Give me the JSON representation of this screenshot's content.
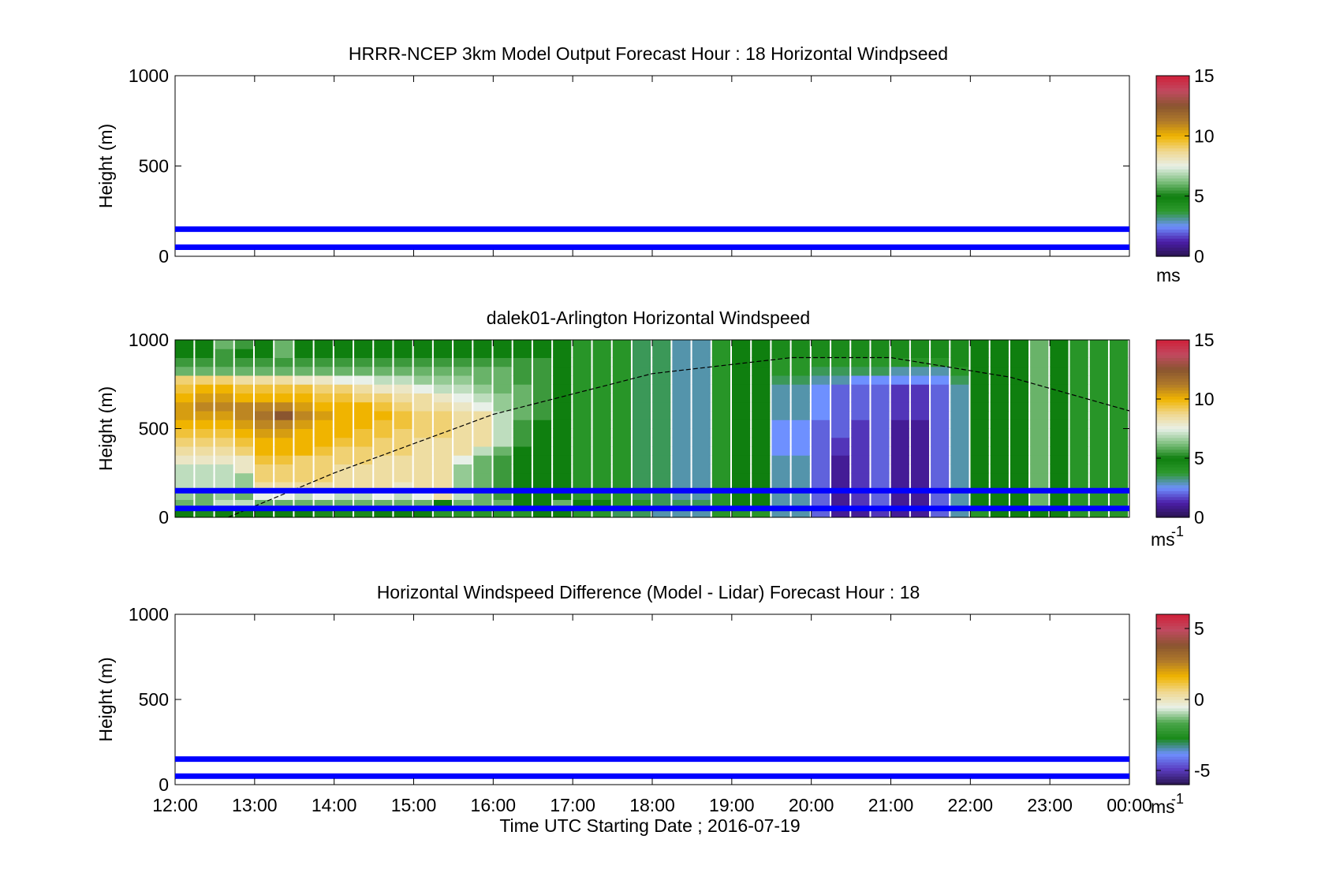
{
  "figure": {
    "xlabel": "Time UTC  Starting Date ; 2016-07-19",
    "xticks": [
      "12:00",
      "13:00",
      "14:00",
      "15:00",
      "16:00",
      "17:00",
      "18:00",
      "19:00",
      "20:00",
      "21:00",
      "22:00",
      "23:00",
      "00:00"
    ]
  },
  "colors": {
    "ref_line": "#0000ff",
    "axes": "#000000",
    "windspeed_colormap": [
      "#2a1450",
      "#4b1ea8",
      "#6e90ff",
      "#2e9a2e",
      "#0f7f0f",
      "#7fc07f",
      "#e8f0e8",
      "#f0d890",
      "#f0b400",
      "#b07a2a",
      "#8a5530",
      "#c04a60",
      "#d0203a"
    ],
    "difference_colormap": [
      "#2a1450",
      "#5a3cc0",
      "#6e90ff",
      "#1a8a1a",
      "#4aa64a",
      "#e8f0e8",
      "#f0d890",
      "#f0b400",
      "#b07a2a",
      "#8a5530",
      "#c04a60",
      "#d0203a"
    ]
  },
  "chart_data": [
    {
      "type": "heatmap",
      "title": "HRRR-NCEP 3km Model Output   Forecast Hour : 18 Horizontal Windpseed",
      "ylabel": "Height (m)",
      "ylim": [
        0,
        1000
      ],
      "yticks": [
        "0",
        "500",
        "1000"
      ],
      "xlim": [
        "12:00",
        "00:00"
      ],
      "grid": false,
      "reference_lines_m": [
        50,
        150
      ],
      "colorbar": {
        "min": 0,
        "max": 15,
        "ticks": [
          "0",
          "5",
          "10",
          "15"
        ],
        "unit_label": "ms"
      },
      "data_present": false
    },
    {
      "type": "heatmap",
      "title": "dalek01-Arlington  Horizontal Windspeed",
      "ylabel": "Height (m)",
      "ylim": [
        0,
        1000
      ],
      "yticks": [
        "0",
        "500",
        "1000"
      ],
      "xlim": [
        "12:00",
        "00:00"
      ],
      "grid": false,
      "reference_lines_m": [
        50,
        150
      ],
      "colorbar": {
        "min": 0,
        "max": 15,
        "ticks": [
          "0",
          "5",
          "10",
          "15"
        ],
        "unit_label": "ms",
        "unit_exponent": "-1"
      },
      "time_bins": [
        "12:07",
        "12:22",
        "12:37",
        "12:52",
        "13:07",
        "13:22",
        "13:37",
        "13:52",
        "14:07",
        "14:22",
        "14:37",
        "14:52",
        "15:07",
        "15:22",
        "15:37",
        "15:52",
        "16:07",
        "16:22",
        "16:37",
        "16:52",
        "17:07",
        "17:22",
        "17:37",
        "17:52",
        "18:07",
        "18:22",
        "18:37",
        "18:52",
        "19:07",
        "19:22",
        "19:37",
        "19:52",
        "20:07",
        "20:22",
        "20:37",
        "20:52",
        "21:07",
        "21:22",
        "21:37",
        "21:52",
        "22:07",
        "22:22",
        "22:37",
        "22:52",
        "23:07",
        "23:22",
        "23:37",
        "23:52"
      ],
      "heights_m": [
        25,
        75,
        125,
        175,
        225,
        275,
        325,
        375,
        425,
        475,
        525,
        575,
        625,
        675,
        725,
        775,
        825,
        875,
        925,
        975
      ],
      "windspeed_ms": [
        [
          5,
          4.5,
          5,
          5,
          5,
          5,
          5,
          4.5,
          4.5,
          4.5,
          5,
          5,
          5,
          4,
          4,
          4,
          4,
          4,
          5,
          5,
          4,
          4,
          3.5,
          3.5,
          3,
          3,
          3,
          4,
          4,
          4,
          3,
          3,
          2,
          1,
          1,
          1.5,
          1,
          1,
          2,
          3,
          4,
          5,
          5,
          5,
          5,
          4,
          4,
          4
        ],
        [
          6,
          6,
          7,
          7,
          6,
          6,
          6,
          6,
          6,
          6,
          6,
          6,
          6,
          5,
          6,
          6,
          6,
          5,
          5,
          6,
          5,
          5,
          4,
          4,
          3.5,
          3.5,
          3.5,
          4,
          5,
          5,
          3,
          3,
          2,
          1,
          1.5,
          2,
          1,
          1,
          2,
          3,
          5,
          5,
          5,
          6,
          5,
          4,
          4,
          4
        ],
        [
          6.5,
          6,
          6.5,
          6,
          7.5,
          7.5,
          7,
          7.5,
          7,
          7,
          7.5,
          7,
          7.5,
          8.5,
          7,
          6,
          5.5,
          5,
          5,
          5,
          4,
          4,
          4,
          3.5,
          3.5,
          3,
          3,
          4,
          5,
          5,
          3,
          3,
          2,
          1,
          1.5,
          2,
          1,
          1,
          2,
          3,
          5,
          5,
          5,
          6,
          5,
          4,
          4,
          4
        ],
        [
          7,
          7,
          7,
          6.5,
          8.5,
          8.5,
          8.5,
          8.5,
          8.5,
          8.5,
          8.5,
          8,
          8.5,
          8.5,
          6.5,
          6,
          5.5,
          5,
          5,
          5,
          4,
          4,
          4,
          3.5,
          3.5,
          3,
          3,
          4,
          5,
          5,
          3,
          3,
          2,
          1,
          1.5,
          2,
          1,
          1,
          2,
          3,
          5,
          5,
          5,
          6,
          5,
          4,
          4,
          4
        ],
        [
          7,
          7,
          7,
          6.5,
          9,
          9,
          9,
          9,
          8.5,
          8.5,
          8.5,
          8.5,
          8.5,
          8.5,
          6.5,
          6,
          5.5,
          5,
          5,
          5,
          4,
          4,
          4,
          3.5,
          3.5,
          3,
          3,
          4,
          5,
          5,
          3,
          3,
          2,
          1,
          1.5,
          2,
          1,
          1,
          2,
          3,
          5,
          5,
          5,
          6,
          5,
          4,
          4,
          4
        ],
        [
          7,
          7,
          7,
          8,
          9,
          9,
          9,
          9,
          8.5,
          8.5,
          8.5,
          8.5,
          8.5,
          8.5,
          6.5,
          6,
          5.5,
          5,
          5,
          5,
          4,
          4,
          4,
          3.5,
          3.5,
          3,
          3,
          4,
          5,
          5,
          3,
          3,
          2,
          1,
          1.5,
          2,
          1,
          1,
          2,
          3,
          5,
          5,
          5,
          6,
          5,
          4,
          4,
          4
        ],
        [
          8,
          8,
          8,
          8,
          9.5,
          9.5,
          9,
          9,
          9,
          9,
          8.5,
          8.5,
          8.5,
          8.5,
          7.5,
          6,
          5.5,
          5,
          5,
          5,
          4,
          4,
          4,
          3.5,
          3.5,
          3,
          3,
          4,
          5,
          5,
          3,
          3,
          2,
          1,
          1.5,
          2,
          1,
          1,
          2,
          3,
          5,
          5,
          5,
          6,
          5,
          4,
          4,
          4
        ],
        [
          8.5,
          8.5,
          8.5,
          9,
          10,
          10,
          10,
          9.5,
          9,
          9,
          9,
          9,
          8.5,
          8.5,
          8.5,
          7,
          6,
          5,
          5,
          5,
          4,
          4,
          4,
          3.5,
          3.5,
          3,
          3,
          4,
          5,
          5,
          2.5,
          2.5,
          2,
          1.5,
          1.5,
          2,
          1,
          1,
          2,
          3,
          5,
          5,
          5,
          6,
          5,
          4,
          4,
          4
        ],
        [
          9,
          9,
          9,
          9.5,
          10,
          10,
          10,
          10,
          9.5,
          9.5,
          9,
          9,
          8.5,
          8.5,
          8.5,
          8.5,
          7,
          5.5,
          5,
          5,
          4,
          4,
          4,
          3.5,
          3.5,
          3,
          3,
          4,
          5,
          5,
          2.5,
          2.5,
          2,
          1.5,
          1.5,
          2,
          1,
          1,
          2,
          3,
          5,
          5,
          5,
          6,
          5,
          4,
          4,
          4
        ],
        [
          9.5,
          9.5,
          9.5,
          10,
          10.5,
          10.5,
          10,
          10,
          10,
          9.5,
          9.5,
          9,
          9,
          9,
          8.5,
          8.5,
          7,
          5.5,
          5,
          5,
          4,
          4,
          4,
          3.5,
          3.5,
          3,
          3,
          4,
          5,
          5,
          2.5,
          2.5,
          2,
          2,
          1.5,
          2,
          1,
          1,
          2,
          3,
          5,
          5,
          5,
          6,
          5,
          4,
          4,
          4
        ],
        [
          10,
          10,
          10,
          10.5,
          11,
          11,
          10.5,
          10,
          10,
          10,
          9.5,
          9.5,
          9,
          9,
          8.5,
          8.5,
          7,
          5.5,
          5,
          5,
          4,
          4,
          4,
          3.5,
          3.5,
          3,
          3,
          4,
          5,
          5,
          2.5,
          2.5,
          2,
          2,
          1.5,
          2,
          1,
          1,
          2,
          3,
          5,
          5,
          5,
          6,
          5,
          4,
          4,
          4
        ],
        [
          10.5,
          10.5,
          10.5,
          11,
          11.5,
          12.5,
          11,
          10.5,
          10,
          10,
          10,
          9.5,
          9,
          9,
          8.5,
          8.5,
          7,
          6,
          5.5,
          5,
          4,
          4,
          4,
          3.5,
          3.5,
          3,
          3,
          4,
          5,
          5,
          3,
          3,
          2.5,
          2,
          2,
          2,
          1.5,
          1.5,
          2,
          3,
          5,
          5,
          5,
          6,
          5,
          4,
          4,
          4
        ],
        [
          10.5,
          11,
          11,
          11,
          11,
          11,
          10.5,
          10,
          10,
          10,
          9.5,
          9,
          8.5,
          8.5,
          8,
          7.5,
          6.5,
          6,
          5.5,
          5,
          4,
          4,
          4,
          3.5,
          3.5,
          3,
          3,
          4,
          5,
          5,
          3,
          3,
          2.5,
          2,
          2,
          2,
          1.5,
          1.5,
          2,
          3,
          5,
          5,
          5,
          6,
          5,
          4,
          4,
          4
        ],
        [
          10,
          10.5,
          10.5,
          10,
          10,
          10,
          10,
          9.5,
          9.5,
          9,
          9,
          8.5,
          8.5,
          8,
          7.5,
          7,
          6.5,
          6,
          5.5,
          5,
          4,
          4,
          4,
          3.5,
          3.5,
          3,
          3,
          4,
          5,
          5,
          3,
          3,
          2.5,
          2,
          2,
          2,
          1.5,
          1.5,
          2,
          3,
          5,
          5,
          5,
          6,
          5,
          4,
          4,
          4
        ],
        [
          9.5,
          10,
          10,
          9.5,
          9.5,
          9.5,
          9.5,
          9,
          9,
          8.5,
          8,
          8,
          7.5,
          7,
          7,
          6.5,
          6,
          6,
          5.5,
          5,
          4,
          4,
          4,
          3.5,
          3.5,
          3,
          3,
          4,
          5,
          5,
          3,
          3,
          2.5,
          2,
          2,
          2,
          1.5,
          1.5,
          2,
          3,
          5,
          5,
          5,
          6,
          5,
          4,
          4,
          4
        ],
        [
          9,
          9,
          9,
          8.5,
          8.5,
          8.5,
          8,
          8,
          7.5,
          7.5,
          7,
          7,
          6.5,
          6.5,
          6.5,
          6,
          6,
          5.5,
          5.5,
          5,
          4,
          4,
          4,
          3.5,
          3.5,
          3,
          3,
          4,
          5,
          5,
          3.5,
          3.5,
          3,
          3,
          2.5,
          2.5,
          2.5,
          2.5,
          2.5,
          3.5,
          5,
          5,
          5,
          6,
          5,
          4,
          4,
          4
        ],
        [
          6,
          6,
          6,
          6,
          6,
          6,
          6,
          6,
          6,
          6,
          6,
          6,
          6,
          6,
          6,
          6,
          6,
          5.5,
          5.5,
          5,
          4,
          4,
          4,
          3.5,
          3.5,
          3,
          3,
          4,
          5,
          5,
          4,
          4,
          3.5,
          3.5,
          3.5,
          3.5,
          3,
          3,
          3,
          4,
          5,
          5,
          5,
          6,
          5,
          4,
          4,
          4
        ],
        [
          5.5,
          5.5,
          5.5,
          5.5,
          5.5,
          5.5,
          5.5,
          5.5,
          5.5,
          5.5,
          5.5,
          5.5,
          5.5,
          5.5,
          5.5,
          5.5,
          5.5,
          5.5,
          5.5,
          5,
          4,
          4,
          4,
          3.5,
          3.5,
          3,
          3,
          4,
          5,
          5,
          4,
          4,
          4,
          4,
          4,
          4,
          4,
          4,
          4,
          4.5,
          5,
          5,
          5,
          6,
          5,
          4,
          4,
          4
        ],
        [
          5,
          5,
          5.5,
          5,
          5,
          6,
          5,
          5,
          5,
          5,
          5,
          5,
          5,
          5,
          5,
          5,
          5,
          5,
          5,
          5,
          4,
          4,
          4,
          3.5,
          3.5,
          3,
          3,
          4,
          5,
          5,
          4.5,
          4.5,
          4.5,
          4.5,
          4.5,
          4.5,
          4.5,
          4.5,
          4.5,
          4.5,
          5,
          5,
          5,
          6,
          5,
          4,
          4,
          4
        ],
        [
          5,
          5,
          6,
          5.5,
          5,
          6,
          5,
          5,
          5,
          5,
          5,
          5,
          5,
          5,
          5,
          5,
          5,
          5,
          5,
          5,
          4,
          4,
          4,
          3.5,
          3.5,
          3,
          3,
          4,
          5,
          5,
          4.5,
          4.5,
          4.5,
          4.5,
          4.5,
          4.5,
          4.5,
          4.5,
          4.5,
          4.5,
          5,
          5,
          5,
          6,
          5,
          4,
          4,
          4
        ]
      ],
      "overlay_curve": [
        {
          "time": "12:40",
          "height_m": 0
        },
        {
          "time": "14:00",
          "height_m": 250
        },
        {
          "time": "16:00",
          "height_m": 580
        },
        {
          "time": "18:00",
          "height_m": 810
        },
        {
          "time": "19:45",
          "height_m": 900
        },
        {
          "time": "21:00",
          "height_m": 900
        },
        {
          "time": "22:30",
          "height_m": 790
        },
        {
          "time": "00:00",
          "height_m": 600
        }
      ]
    },
    {
      "type": "heatmap",
      "title": "Horizontal Windspeed Difference (Model - Lidar) Forecast Hour : 18",
      "ylabel": "Height (m)",
      "ylim": [
        0,
        1000
      ],
      "yticks": [
        "0",
        "500",
        "1000"
      ],
      "xlim": [
        "12:00",
        "00:00"
      ],
      "grid": false,
      "reference_lines_m": [
        50,
        150
      ],
      "colorbar": {
        "min": -6,
        "max": 6,
        "ticks": [
          "-5",
          "0",
          "5"
        ],
        "unit_label": "ms",
        "unit_exponent": "-1"
      },
      "data_present": false
    }
  ]
}
